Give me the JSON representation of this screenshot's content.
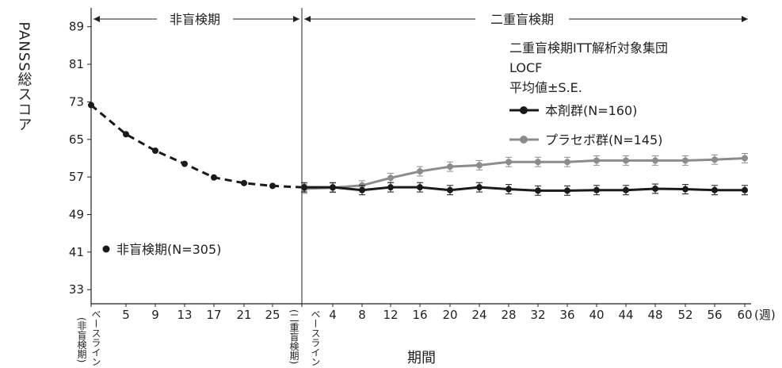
{
  "chart_data": {
    "type": "line",
    "title": "",
    "xlabel": "期間",
    "ylabel": "PANSS総スコア",
    "x_unit": "(週)",
    "ylim": [
      30,
      93
    ],
    "yticks": [
      33,
      41,
      49,
      57,
      65,
      73,
      81,
      89
    ],
    "phases": [
      {
        "name": "非盲検期"
      },
      {
        "name": "二重盲検期"
      }
    ],
    "annotations": [
      "二重盲検期ITT解析対象集団",
      "LOCF",
      "平均値±S.E."
    ],
    "open_label": {
      "x": [
        "ベースライン",
        "5",
        "9",
        "13",
        "17",
        "21",
        "25",
        "ベースライン"
      ],
      "x_note_start": "(非盲検期)",
      "x_note_end": "(二重盲検期)",
      "y": [
        72.3,
        66.1,
        62.6,
        59.8,
        56.9,
        55.7,
        55.1,
        54.8
      ],
      "legend": "非盲検期(N=305)"
    },
    "double_blind_x": [
      "ベースライン",
      "4",
      "8",
      "12",
      "16",
      "20",
      "24",
      "28",
      "32",
      "36",
      "40",
      "44",
      "48",
      "52",
      "56",
      "60"
    ],
    "series": [
      {
        "name": "本剤群(N=160)",
        "color": "#1a1a1a",
        "values": [
          54.8,
          54.8,
          54.2,
          54.8,
          54.8,
          54.2,
          54.8,
          54.4,
          54.1,
          54.1,
          54.2,
          54.2,
          54.5,
          54.4,
          54.2,
          54.2
        ]
      },
      {
        "name": "プラセボ群(N=145)",
        "color": "#8c8c8c",
        "values": [
          54.5,
          54.7,
          55.2,
          56.8,
          58.2,
          59.2,
          59.5,
          60.2,
          60.2,
          60.2,
          60.5,
          60.5,
          60.5,
          60.5,
          60.7,
          61.0
        ]
      }
    ],
    "error_bar": 1.0
  }
}
